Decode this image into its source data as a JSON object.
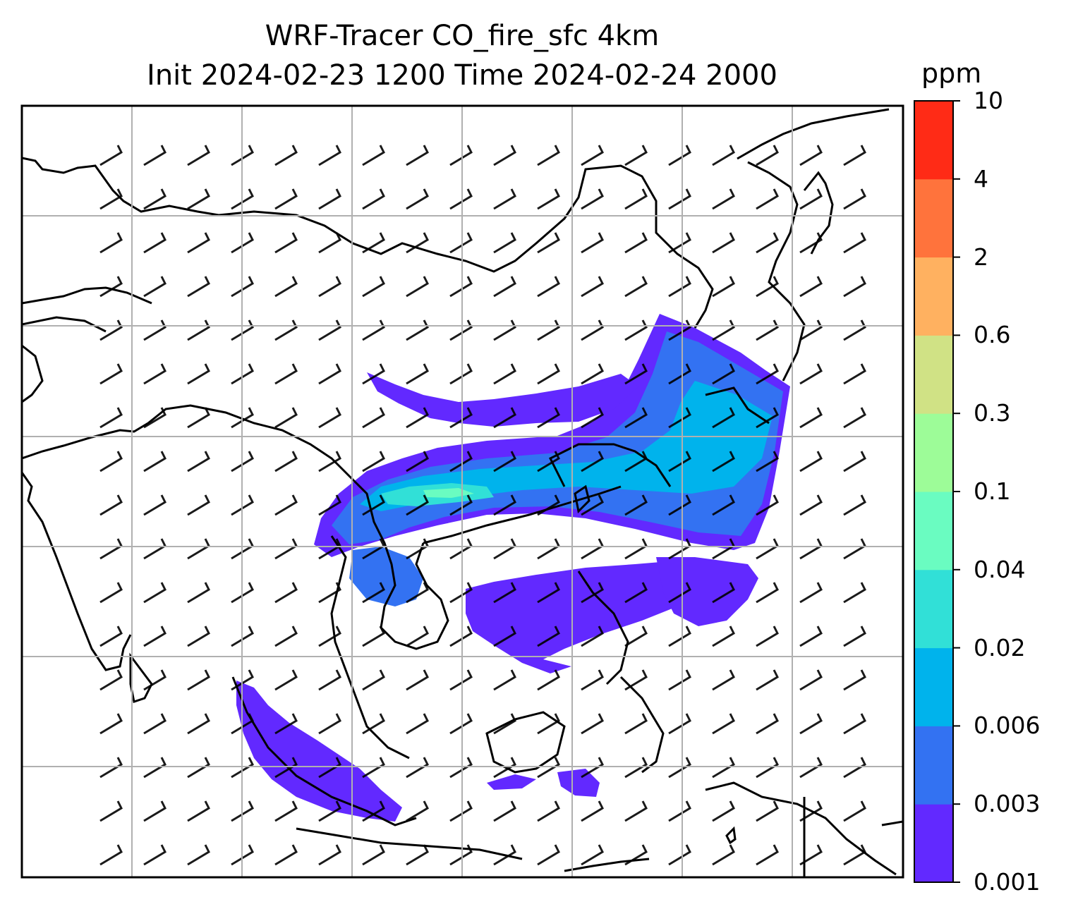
{
  "title": {
    "line1": "WRF-Tracer CO_fire_sfc 4km",
    "line2": "Init 2024-02-23 1200 Time 2024-02-24 2000"
  },
  "colorbar": {
    "unit": "ppm",
    "levels": [
      "0.001",
      "0.003",
      "0.006",
      "0.02",
      "0.04",
      "0.1",
      "0.3",
      "0.6",
      "2",
      "4",
      "10"
    ],
    "colors": [
      "#6229ff",
      "#3372f2",
      "#00b3ec",
      "#31e0d7",
      "#6afcc1",
      "#9dfc98",
      "#d0e285",
      "#ffb160",
      "#ff733c",
      "#ff2b16"
    ]
  },
  "map": {
    "gridlines": true,
    "coastlines": true,
    "wind_barbs": true,
    "tracer_color_scale": "rainbow"
  }
}
